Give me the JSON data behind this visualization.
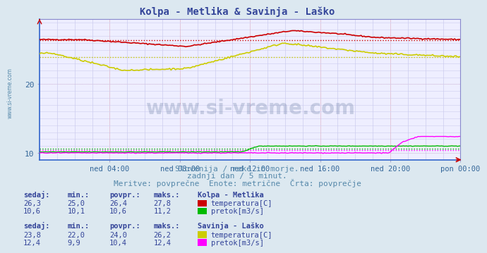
{
  "title": "Kolpa - Metlika & Savinja - Laško",
  "bg_color": "#dce8f0",
  "plot_bg_color": "#eeeeff",
  "grid_color_major": "#ffaaaa",
  "grid_color_minor": "#ccccee",
  "xlim": [
    0,
    288
  ],
  "ylim": [
    9.0,
    29.5
  ],
  "yticks": [
    10,
    20
  ],
  "xtick_labels": [
    "ned 04:00",
    "ned 08:00",
    "ned 12:00",
    "ned 16:00",
    "ned 20:00",
    "pon 00:00"
  ],
  "xtick_positions": [
    48,
    96,
    144,
    192,
    240,
    288
  ],
  "kolpa_temp_avg": 26.4,
  "kolpa_flow_avg": 10.6,
  "savinja_temp_avg": 24.0,
  "savinja_flow_avg": 10.4,
  "colors": {
    "kolpa_temp": "#cc0000",
    "kolpa_flow": "#00bb00",
    "savinja_temp": "#cccc00",
    "savinja_flow": "#ff00ff"
  },
  "subtitle1": "Slovenija / reke in morje.",
  "subtitle2": "zadnji dan / 5 minut.",
  "subtitle3": "Meritve: povprečne  Enote: metrične  Črta: povprečje",
  "watermark": "www.si-vreme.com",
  "table_header": [
    "sedaj:",
    "min.:",
    "povpr.:",
    "maks.:"
  ],
  "kolpa_title": "Kolpa - Metlika",
  "kolpa_temp_row": [
    "26,3",
    "25,0",
    "26,4",
    "27,8"
  ],
  "kolpa_flow_row": [
    "10,6",
    "10,1",
    "10,6",
    "11,2"
  ],
  "savinja_title": "Savinja - Laško",
  "savinja_temp_row": [
    "23,8",
    "22,0",
    "24,0",
    "26,2"
  ],
  "savinja_flow_row": [
    "12,4",
    "9,9",
    "10,4",
    "12,4"
  ],
  "label_temp_kolpa": "temperatura[C]",
  "label_flow_kolpa": "pretok[m3/s]",
  "label_temp_savinja": "temperatura[C]",
  "label_flow_savinja": "pretok[m3/s]"
}
